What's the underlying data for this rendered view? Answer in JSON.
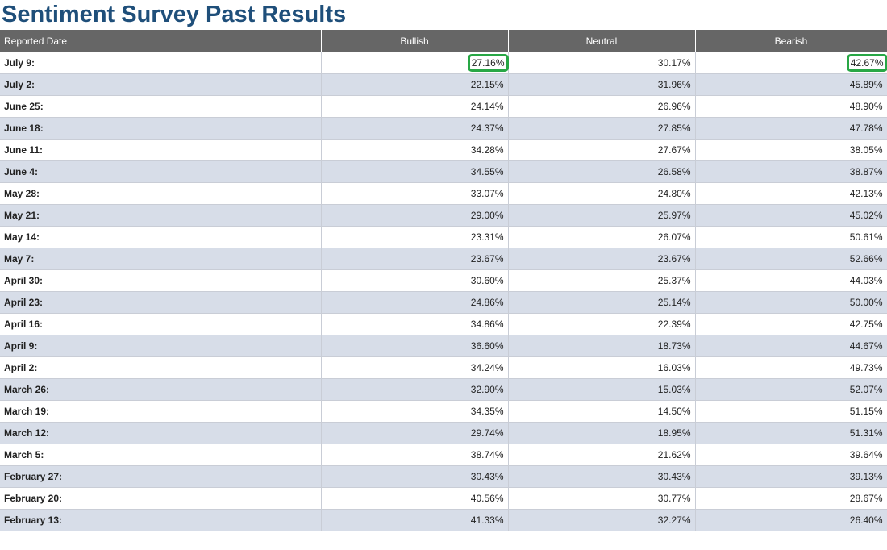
{
  "page": {
    "title": "Sentiment Survey Past Results"
  },
  "table": {
    "headers": {
      "date": "Reported Date",
      "bullish": "Bullish",
      "neutral": "Neutral",
      "bearish": "Bearish"
    },
    "highlight_color": "#28a745",
    "rows": [
      {
        "date": "July 9:",
        "bullish": "27.16%",
        "neutral": "30.17%",
        "bearish": "42.67%",
        "highlighted": [
          "bullish",
          "bearish"
        ]
      },
      {
        "date": "July 2:",
        "bullish": "22.15%",
        "neutral": "31.96%",
        "bearish": "45.89%"
      },
      {
        "date": "June 25:",
        "bullish": "24.14%",
        "neutral": "26.96%",
        "bearish": "48.90%"
      },
      {
        "date": "June 18:",
        "bullish": "24.37%",
        "neutral": "27.85%",
        "bearish": "47.78%"
      },
      {
        "date": "June 11:",
        "bullish": "34.28%",
        "neutral": "27.67%",
        "bearish": "38.05%"
      },
      {
        "date": "June 4:",
        "bullish": "34.55%",
        "neutral": "26.58%",
        "bearish": "38.87%"
      },
      {
        "date": "May 28:",
        "bullish": "33.07%",
        "neutral": "24.80%",
        "bearish": "42.13%"
      },
      {
        "date": "May 21:",
        "bullish": "29.00%",
        "neutral": "25.97%",
        "bearish": "45.02%"
      },
      {
        "date": "May 14:",
        "bullish": "23.31%",
        "neutral": "26.07%",
        "bearish": "50.61%"
      },
      {
        "date": "May 7:",
        "bullish": "23.67%",
        "neutral": "23.67%",
        "bearish": "52.66%"
      },
      {
        "date": "April 30:",
        "bullish": "30.60%",
        "neutral": "25.37%",
        "bearish": "44.03%"
      },
      {
        "date": "April 23:",
        "bullish": "24.86%",
        "neutral": "25.14%",
        "bearish": "50.00%"
      },
      {
        "date": "April 16:",
        "bullish": "34.86%",
        "neutral": "22.39%",
        "bearish": "42.75%"
      },
      {
        "date": "April 9:",
        "bullish": "36.60%",
        "neutral": "18.73%",
        "bearish": "44.67%"
      },
      {
        "date": "April 2:",
        "bullish": "34.24%",
        "neutral": "16.03%",
        "bearish": "49.73%"
      },
      {
        "date": "March 26:",
        "bullish": "32.90%",
        "neutral": "15.03%",
        "bearish": "52.07%"
      },
      {
        "date": "March 19:",
        "bullish": "34.35%",
        "neutral": "14.50%",
        "bearish": "51.15%"
      },
      {
        "date": "March 12:",
        "bullish": "29.74%",
        "neutral": "18.95%",
        "bearish": "51.31%"
      },
      {
        "date": "March 5:",
        "bullish": "38.74%",
        "neutral": "21.62%",
        "bearish": "39.64%"
      },
      {
        "date": "February 27:",
        "bullish": "30.43%",
        "neutral": "30.43%",
        "bearish": "39.13%"
      },
      {
        "date": "February 20:",
        "bullish": "40.56%",
        "neutral": "30.77%",
        "bearish": "28.67%"
      },
      {
        "date": "February 13:",
        "bullish": "41.33%",
        "neutral": "32.27%",
        "bearish": "26.40%"
      }
    ]
  }
}
